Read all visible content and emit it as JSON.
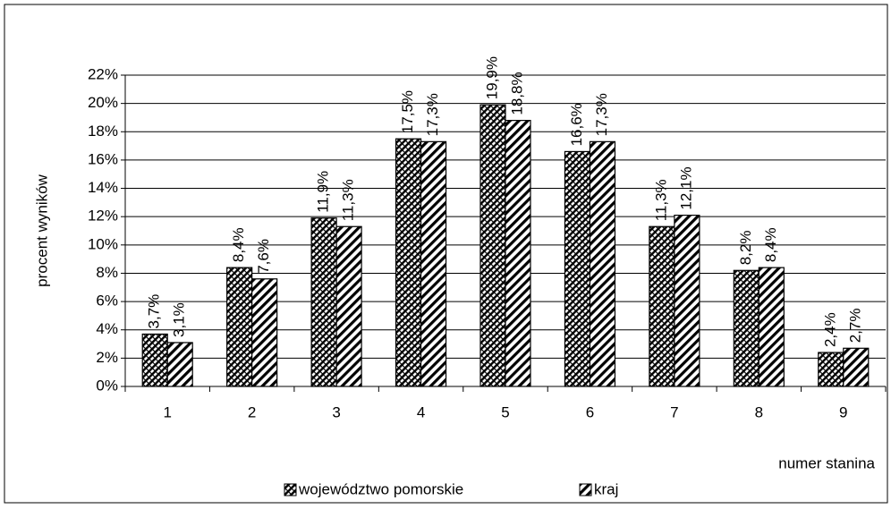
{
  "chart_data": {
    "type": "bar",
    "categories": [
      "1",
      "2",
      "3",
      "4",
      "5",
      "6",
      "7",
      "8",
      "9"
    ],
    "series": [
      {
        "name": "województwo pomorskie",
        "color": "#000000",
        "pattern": "crosshatch",
        "values": [
          3.7,
          8.4,
          11.9,
          17.5,
          19.9,
          16.6,
          11.3,
          8.2,
          2.4
        ],
        "value_labels": [
          "3,7%",
          "8,4%",
          "11,9%",
          "17,5%",
          "19,9%",
          "16,6%",
          "11,3%",
          "8,2%",
          "2,4%"
        ]
      },
      {
        "name": "kraj",
        "color": "#000000",
        "pattern": "stripes",
        "values": [
          3.1,
          7.6,
          11.3,
          17.3,
          18.8,
          17.3,
          12.1,
          8.4,
          2.7
        ],
        "value_labels": [
          "3,1%",
          "7,6%",
          "11,3%",
          "17,3%",
          "18,8%",
          "17,3%",
          "12,1%",
          "8,4%",
          "2,7%"
        ]
      }
    ],
    "ylabel": "procent  wyników",
    "xlabel": "numer stanina",
    "ylim": [
      0,
      22
    ],
    "yticks": [
      {
        "value": 0,
        "label": "0%"
      },
      {
        "value": 2,
        "label": "2%"
      },
      {
        "value": 4,
        "label": "4%"
      },
      {
        "value": 6,
        "label": "6%"
      },
      {
        "value": 8,
        "label": "8%"
      },
      {
        "value": 10,
        "label": "10%"
      },
      {
        "value": 12,
        "label": "12%"
      },
      {
        "value": 14,
        "label": "14%"
      },
      {
        "value": 16,
        "label": "16%"
      },
      {
        "value": 18,
        "label": "18%"
      },
      {
        "value": 20,
        "label": "20%"
      },
      {
        "value": 22,
        "label": "22%"
      }
    ],
    "grid": true,
    "legend": "bottom"
  }
}
